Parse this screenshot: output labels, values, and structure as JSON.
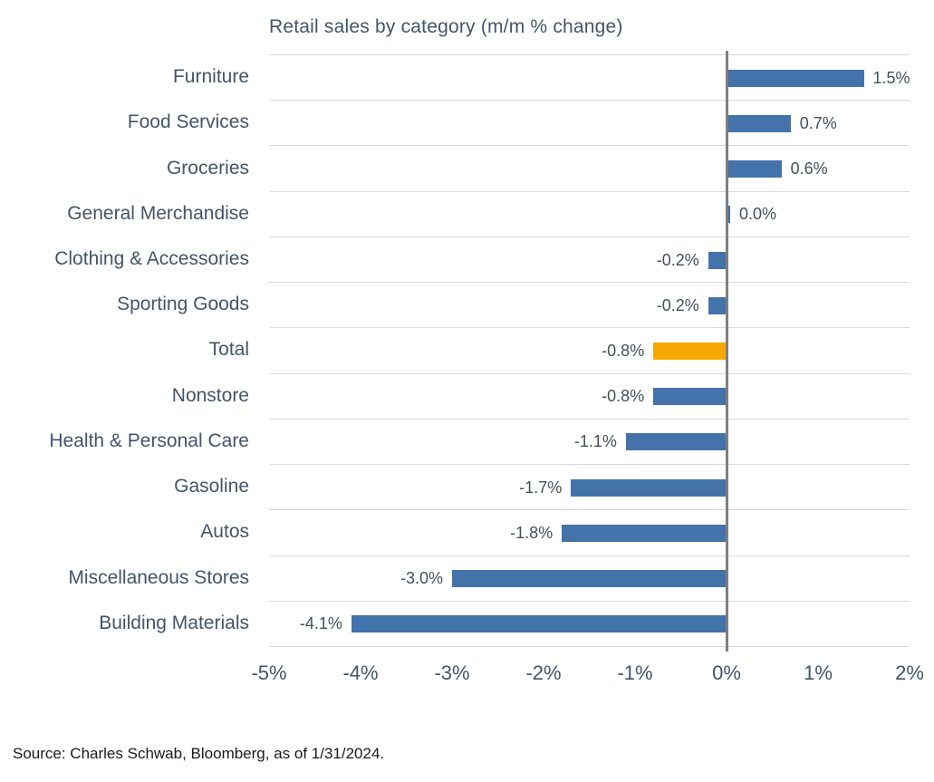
{
  "title": "Retail sales by category (m/m % change)",
  "source": "Source: Charles Schwab, Bloomberg, as of 1/31/2024.",
  "colors": {
    "bar_blue": "#4472AA",
    "bar_highlight_orange": "#F7A800",
    "zero_line_gray": "#7F7F7F",
    "gridline_gray": "#D9D9D9",
    "category_text": "#44546A",
    "value_text": "#44505E",
    "source_text": "#1A1A1A"
  },
  "chart_data": {
    "type": "bar",
    "orientation": "horizontal",
    "title": "Retail sales by category (m/m % change)",
    "categories": [
      "Furniture",
      "Food Services",
      "Groceries",
      "General Merchandise",
      "Clothing & Accessories",
      "Sporting Goods",
      "Total",
      "Nonstore",
      "Health & Personal Care",
      "Gasoline",
      "Autos",
      "Miscellaneous Stores",
      "Building Materials"
    ],
    "values": [
      1.5,
      0.7,
      0.6,
      0.0,
      -0.2,
      -0.2,
      -0.8,
      -0.8,
      -1.1,
      -1.7,
      -1.8,
      -3.0,
      -4.1
    ],
    "value_labels": [
      "1.5%",
      "0.7%",
      "0.6%",
      "0.0%",
      "-0.2%",
      "-0.2%",
      "-0.8%",
      "-0.8%",
      "-1.1%",
      "-1.7%",
      "-1.8%",
      "-3.0%",
      "-4.1%"
    ],
    "highlight_category": "Total",
    "xlabel": "",
    "ylabel": "",
    "xlim": [
      -5,
      2
    ],
    "x_ticks": [
      "-5%",
      "-4%",
      "-3%",
      "-2%",
      "-1%",
      "0%",
      "1%",
      "2%"
    ],
    "x_tick_values": [
      -5,
      -4,
      -3,
      -2,
      -1,
      0,
      1,
      2
    ],
    "grid": "horizontal row separators on, vertical gridlines off",
    "legend": "none",
    "zero_line": true
  }
}
